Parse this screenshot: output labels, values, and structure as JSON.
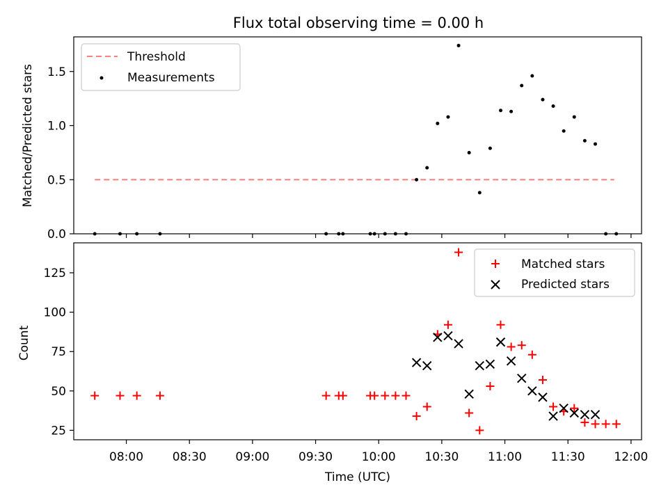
{
  "title": "Flux total observing time = 0.00 h",
  "colors": {
    "threshold": "#ff7f7f",
    "measurement": "#000000",
    "matched": "#ff0000",
    "predicted": "#000000"
  },
  "chart_data": [
    {
      "type": "scatter",
      "ylabel": "Matched/Predicted stars",
      "ylim": [
        0,
        1.82
      ],
      "yticks": [
        "0.0",
        "0.5",
        "1.0",
        "1.5"
      ],
      "grid": false,
      "legend": "top-left",
      "threshold": {
        "name": "Threshold",
        "value": 0.5,
        "x": [
          "07:45",
          "11:52"
        ]
      },
      "series": [
        {
          "name": "Measurements",
          "x": [
            "07:45",
            "07:57",
            "08:05",
            "08:16",
            "09:35",
            "09:41",
            "09:43",
            "09:56",
            "09:58",
            "10:03",
            "10:08",
            "10:13",
            "10:18",
            "10:23",
            "10:28",
            "10:33",
            "10:38",
            "10:43",
            "10:48",
            "10:53",
            "10:58",
            "11:03",
            "11:08",
            "11:13",
            "11:18",
            "11:23",
            "11:28",
            "11:33",
            "11:38",
            "11:43",
            "11:48",
            "11:53"
          ],
          "values": [
            0,
            0,
            0,
            0,
            0,
            0,
            0,
            0,
            0,
            0,
            0,
            0,
            0.5,
            0.61,
            1.02,
            1.08,
            1.74,
            0.75,
            0.38,
            0.79,
            1.14,
            1.13,
            1.37,
            1.46,
            1.24,
            1.18,
            0.95,
            1.08,
            0.86,
            0.83,
            0,
            0
          ]
        }
      ]
    },
    {
      "type": "scatter",
      "xlabel": "Time (UTC)",
      "ylabel": "Count",
      "ylim": [
        19,
        144
      ],
      "yticks": [
        "25",
        "50",
        "75",
        "100",
        "125"
      ],
      "xlim": [
        "07:35",
        "12:05"
      ],
      "xticks": [
        "08:00",
        "08:30",
        "09:00",
        "09:30",
        "10:00",
        "10:30",
        "11:00",
        "11:30",
        "12:00"
      ],
      "grid": false,
      "legend": "top-right",
      "series": [
        {
          "name": "Matched stars",
          "marker": "plus",
          "x": [
            "07:45",
            "07:57",
            "08:05",
            "08:16",
            "09:35",
            "09:41",
            "09:43",
            "09:56",
            "09:58",
            "10:03",
            "10:08",
            "10:13",
            "10:18",
            "10:23",
            "10:28",
            "10:33",
            "10:38",
            "10:43",
            "10:48",
            "10:53",
            "10:58",
            "11:03",
            "11:08",
            "11:13",
            "11:18",
            "11:23",
            "11:28",
            "11:33",
            "11:38",
            "11:43",
            "11:48",
            "11:53"
          ],
          "values": [
            47,
            47,
            47,
            47,
            47,
            47,
            47,
            47,
            47,
            47,
            47,
            47,
            34,
            40,
            86,
            92,
            138,
            36,
            25,
            53,
            92,
            78,
            79,
            73,
            57,
            40,
            37,
            39,
            30,
            29,
            29,
            29
          ]
        },
        {
          "name": "Predicted stars",
          "marker": "x",
          "x": [
            "10:18",
            "10:23",
            "10:28",
            "10:33",
            "10:38",
            "10:43",
            "10:48",
            "10:53",
            "10:58",
            "11:03",
            "11:08",
            "11:13",
            "11:18",
            "11:23",
            "11:28",
            "11:33",
            "11:38",
            "11:43"
          ],
          "values": [
            68,
            66,
            84,
            85,
            80,
            48,
            66,
            67,
            81,
            69,
            58,
            50,
            46,
            34,
            39,
            36,
            35,
            35
          ]
        }
      ]
    }
  ]
}
